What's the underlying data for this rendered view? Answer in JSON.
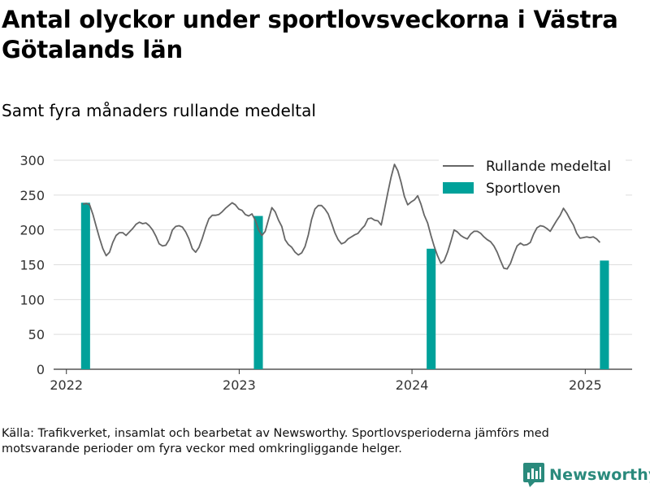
{
  "header": {
    "title": "Antal olyckor under sportlovsveckorna i Västra Götalands län",
    "subtitle": "Samt fyra månaders rullande medeltal"
  },
  "footer": {
    "source": "Källa: Trafikverket, insamlat och bearbetat av Newsworthy. Sportlovsperioderna jämförs med motsvarande perioder om fyra veckor med omkringliggande helger."
  },
  "brand": {
    "name": "Newsworthy",
    "color": "#2a8a7c"
  },
  "chart_data": {
    "type": "bar+line",
    "title": "Antal olyckor under sportlovsveckorna i Västra Götalands län",
    "subtitle": "Samt fyra månaders rullande medeltal",
    "xlabel": "",
    "ylabel": "",
    "ylim": [
      0,
      300
    ],
    "yticks": [
      0,
      50,
      100,
      150,
      200,
      250,
      300
    ],
    "xlim": [
      "2021-12-05",
      "2025-04-10"
    ],
    "xticks": [
      {
        "date": "2022-01-01",
        "label": "2022"
      },
      {
        "date": "2023-01-01",
        "label": "2023"
      },
      {
        "date": "2024-01-01",
        "label": "2024"
      },
      {
        "date": "2025-01-01",
        "label": "2025"
      }
    ],
    "grid": true,
    "legend": {
      "position": "top-right",
      "entries": [
        {
          "label": "Rullande medeltal",
          "type": "line",
          "color": "#666666"
        },
        {
          "label": "Sportloven",
          "type": "bar",
          "color": "#00a19a"
        }
      ]
    },
    "series": [
      {
        "name": "Sportloven",
        "type": "bar",
        "color": "#00a19a",
        "bars": [
          {
            "start": "2022-02-01",
            "end": "2022-02-20",
            "value": 239
          },
          {
            "start": "2023-02-01",
            "end": "2023-02-20",
            "value": 220
          },
          {
            "start": "2024-02-01",
            "end": "2024-02-20",
            "value": 173
          },
          {
            "start": "2025-02-01",
            "end": "2025-02-20",
            "value": 156
          }
        ]
      },
      {
        "name": "Rullande medeltal",
        "type": "line",
        "color": "#666666",
        "points": [
          [
            "2022-02-05",
            237
          ],
          [
            "2022-02-12",
            238
          ],
          [
            "2022-02-19",
            236
          ],
          [
            "2022-02-26",
            222
          ],
          [
            "2022-03-05",
            205
          ],
          [
            "2022-03-12",
            188
          ],
          [
            "2022-03-19",
            173
          ],
          [
            "2022-03-26",
            163
          ],
          [
            "2022-04-02",
            168
          ],
          [
            "2022-04-09",
            182
          ],
          [
            "2022-04-16",
            192
          ],
          [
            "2022-04-23",
            196
          ],
          [
            "2022-04-30",
            196
          ],
          [
            "2022-05-07",
            192
          ],
          [
            "2022-05-14",
            197
          ],
          [
            "2022-05-21",
            202
          ],
          [
            "2022-05-28",
            208
          ],
          [
            "2022-06-04",
            211
          ],
          [
            "2022-06-11",
            209
          ],
          [
            "2022-06-18",
            210
          ],
          [
            "2022-06-25",
            206
          ],
          [
            "2022-07-02",
            200
          ],
          [
            "2022-07-09",
            191
          ],
          [
            "2022-07-16",
            180
          ],
          [
            "2022-07-23",
            177
          ],
          [
            "2022-07-30",
            178
          ],
          [
            "2022-08-06",
            186
          ],
          [
            "2022-08-13",
            200
          ],
          [
            "2022-08-20",
            205
          ],
          [
            "2022-08-27",
            206
          ],
          [
            "2022-09-03",
            204
          ],
          [
            "2022-09-10",
            197
          ],
          [
            "2022-09-17",
            187
          ],
          [
            "2022-09-24",
            173
          ],
          [
            "2022-10-01",
            168
          ],
          [
            "2022-10-08",
            175
          ],
          [
            "2022-10-15",
            188
          ],
          [
            "2022-10-22",
            203
          ],
          [
            "2022-10-29",
            216
          ],
          [
            "2022-11-05",
            221
          ],
          [
            "2022-11-12",
            221
          ],
          [
            "2022-11-19",
            222
          ],
          [
            "2022-11-26",
            226
          ],
          [
            "2022-12-03",
            231
          ],
          [
            "2022-12-10",
            235
          ],
          [
            "2022-12-17",
            239
          ],
          [
            "2022-12-24",
            236
          ],
          [
            "2022-12-31",
            230
          ],
          [
            "2023-01-07",
            228
          ],
          [
            "2023-01-14",
            222
          ],
          [
            "2023-01-21",
            220
          ],
          [
            "2023-01-28",
            223
          ],
          [
            "2023-02-04",
            214
          ],
          [
            "2023-02-11",
            200
          ],
          [
            "2023-02-18",
            192
          ],
          [
            "2023-02-25",
            198
          ],
          [
            "2023-03-04",
            215
          ],
          [
            "2023-03-11",
            232
          ],
          [
            "2023-03-18",
            226
          ],
          [
            "2023-03-25",
            214
          ],
          [
            "2023-04-01",
            205
          ],
          [
            "2023-04-08",
            186
          ],
          [
            "2023-04-15",
            179
          ],
          [
            "2023-04-22",
            175
          ],
          [
            "2023-04-29",
            168
          ],
          [
            "2023-05-06",
            164
          ],
          [
            "2023-05-13",
            167
          ],
          [
            "2023-05-20",
            176
          ],
          [
            "2023-05-27",
            193
          ],
          [
            "2023-06-03",
            215
          ],
          [
            "2023-06-10",
            230
          ],
          [
            "2023-06-17",
            235
          ],
          [
            "2023-06-24",
            235
          ],
          [
            "2023-07-01",
            230
          ],
          [
            "2023-07-08",
            223
          ],
          [
            "2023-07-15",
            210
          ],
          [
            "2023-07-22",
            196
          ],
          [
            "2023-07-29",
            186
          ],
          [
            "2023-08-05",
            180
          ],
          [
            "2023-08-12",
            182
          ],
          [
            "2023-08-19",
            187
          ],
          [
            "2023-08-26",
            190
          ],
          [
            "2023-09-02",
            193
          ],
          [
            "2023-09-09",
            195
          ],
          [
            "2023-09-16",
            201
          ],
          [
            "2023-09-23",
            206
          ],
          [
            "2023-09-30",
            216
          ],
          [
            "2023-10-07",
            217
          ],
          [
            "2023-10-14",
            214
          ],
          [
            "2023-10-21",
            213
          ],
          [
            "2023-10-28",
            207
          ],
          [
            "2023-11-04",
            230
          ],
          [
            "2023-11-11",
            254
          ],
          [
            "2023-11-18",
            276
          ],
          [
            "2023-11-25",
            294
          ],
          [
            "2023-12-02",
            285
          ],
          [
            "2023-12-09",
            268
          ],
          [
            "2023-12-16",
            248
          ],
          [
            "2023-12-23",
            236
          ],
          [
            "2023-12-30",
            240
          ],
          [
            "2024-01-06",
            243
          ],
          [
            "2024-01-13",
            249
          ],
          [
            "2024-01-20",
            237
          ],
          [
            "2024-01-27",
            221
          ],
          [
            "2024-02-03",
            210
          ],
          [
            "2024-02-10",
            192
          ],
          [
            "2024-02-17",
            176
          ],
          [
            "2024-02-24",
            163
          ],
          [
            "2024-03-02",
            152
          ],
          [
            "2024-03-09",
            156
          ],
          [
            "2024-03-16",
            168
          ],
          [
            "2024-03-23",
            183
          ],
          [
            "2024-03-30",
            200
          ],
          [
            "2024-04-06",
            197
          ],
          [
            "2024-04-13",
            192
          ],
          [
            "2024-04-20",
            189
          ],
          [
            "2024-04-27",
            187
          ],
          [
            "2024-05-04",
            194
          ],
          [
            "2024-05-11",
            198
          ],
          [
            "2024-05-18",
            198
          ],
          [
            "2024-05-25",
            195
          ],
          [
            "2024-06-01",
            190
          ],
          [
            "2024-06-08",
            186
          ],
          [
            "2024-06-15",
            183
          ],
          [
            "2024-06-22",
            177
          ],
          [
            "2024-06-29",
            168
          ],
          [
            "2024-07-06",
            156
          ],
          [
            "2024-07-13",
            145
          ],
          [
            "2024-07-20",
            144
          ],
          [
            "2024-07-27",
            152
          ],
          [
            "2024-08-03",
            165
          ],
          [
            "2024-08-10",
            177
          ],
          [
            "2024-08-17",
            181
          ],
          [
            "2024-08-24",
            178
          ],
          [
            "2024-08-31",
            179
          ],
          [
            "2024-09-07",
            182
          ],
          [
            "2024-09-14",
            194
          ],
          [
            "2024-09-21",
            203
          ],
          [
            "2024-09-28",
            206
          ],
          [
            "2024-10-05",
            205
          ],
          [
            "2024-10-12",
            202
          ],
          [
            "2024-10-19",
            198
          ],
          [
            "2024-10-26",
            206
          ],
          [
            "2024-11-02",
            214
          ],
          [
            "2024-11-09",
            221
          ],
          [
            "2024-11-16",
            231
          ],
          [
            "2024-11-23",
            224
          ],
          [
            "2024-11-30",
            215
          ],
          [
            "2024-12-07",
            207
          ],
          [
            "2024-12-14",
            195
          ],
          [
            "2024-12-21",
            188
          ],
          [
            "2024-12-28",
            189
          ],
          [
            "2025-01-04",
            190
          ],
          [
            "2025-01-11",
            189
          ],
          [
            "2025-01-18",
            190
          ],
          [
            "2025-01-25",
            187
          ],
          [
            "2025-02-01",
            182
          ]
        ]
      }
    ]
  }
}
